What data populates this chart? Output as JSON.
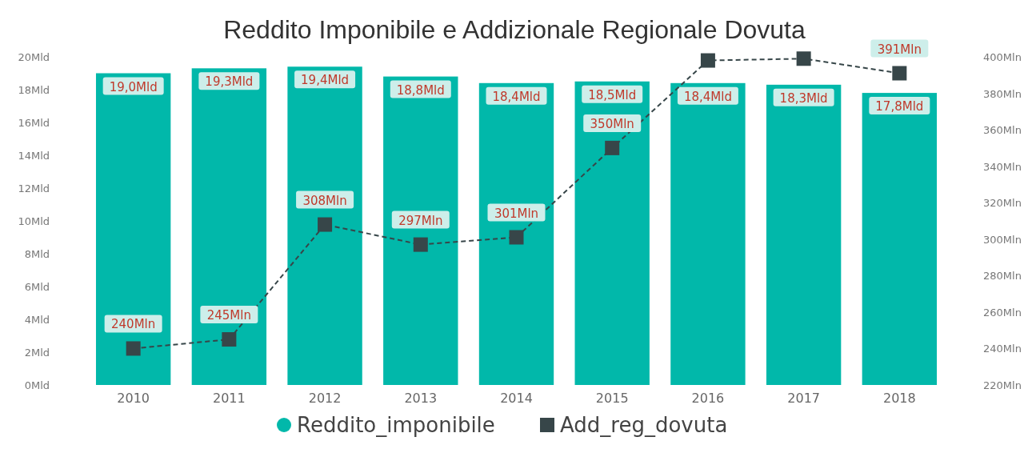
{
  "chart_data": {
    "type": "bar",
    "title": "Reddito Imponibile e Addizionale Regionale Dovuta",
    "categories": [
      "2010",
      "2011",
      "2012",
      "2013",
      "2014",
      "2015",
      "2016",
      "2017",
      "2018"
    ],
    "series": [
      {
        "name": "Reddito_imponibile",
        "color": "#01b8aa",
        "values": [
          19.0,
          19.3,
          19.4,
          18.8,
          18.4,
          18.5,
          18.4,
          18.3,
          17.8
        ],
        "value_labels": [
          "19,0Mld",
          "19,3Mld",
          "19,4Mld",
          "18,8Mld",
          "18,4Mld",
          "18,5Mld",
          "18,4Mld",
          "18,3Mld",
          "17,8Mld"
        ]
      },
      {
        "name": "Add_reg_dovuta",
        "type": "line",
        "axis": "y2",
        "color": "#374649",
        "marker": "square",
        "line_style": "dashed",
        "values": [
          240,
          245,
          308,
          297,
          301,
          350,
          398,
          399,
          391
        ],
        "value_labels": [
          "240Mln",
          "245Mln",
          "308Mln",
          "297Mln",
          "301Mln",
          "350Mln",
          null,
          null,
          "391Mln"
        ]
      }
    ],
    "ylim": [
      0,
      20
    ],
    "yticks": [
      {
        "value": 0,
        "label": "0Mld"
      },
      {
        "value": 2,
        "label": "2Mld"
      },
      {
        "value": 4,
        "label": "4Mld"
      },
      {
        "value": 6,
        "label": "6Mld"
      },
      {
        "value": 8,
        "label": "8Mld"
      },
      {
        "value": 10,
        "label": "10Mld"
      },
      {
        "value": 12,
        "label": "12Mld"
      },
      {
        "value": 14,
        "label": "14Mld"
      },
      {
        "value": 16,
        "label": "16Mld"
      },
      {
        "value": 18,
        "label": "18Mld"
      },
      {
        "value": 20,
        "label": "20Mld"
      }
    ],
    "y2lim": [
      220,
      400
    ],
    "y2ticks": [
      {
        "value": 220,
        "label": "220Mln"
      },
      {
        "value": 240,
        "label": "240Mln"
      },
      {
        "value": 260,
        "label": "260Mln"
      },
      {
        "value": 280,
        "label": "280Mln"
      },
      {
        "value": 300,
        "label": "300Mln"
      },
      {
        "value": 320,
        "label": "320Mln"
      },
      {
        "value": 340,
        "label": "340Mln"
      },
      {
        "value": 360,
        "label": "360Mln"
      },
      {
        "value": 380,
        "label": "380Mln"
      },
      {
        "value": 400,
        "label": "400Mln"
      }
    ],
    "legend": "bottom"
  }
}
